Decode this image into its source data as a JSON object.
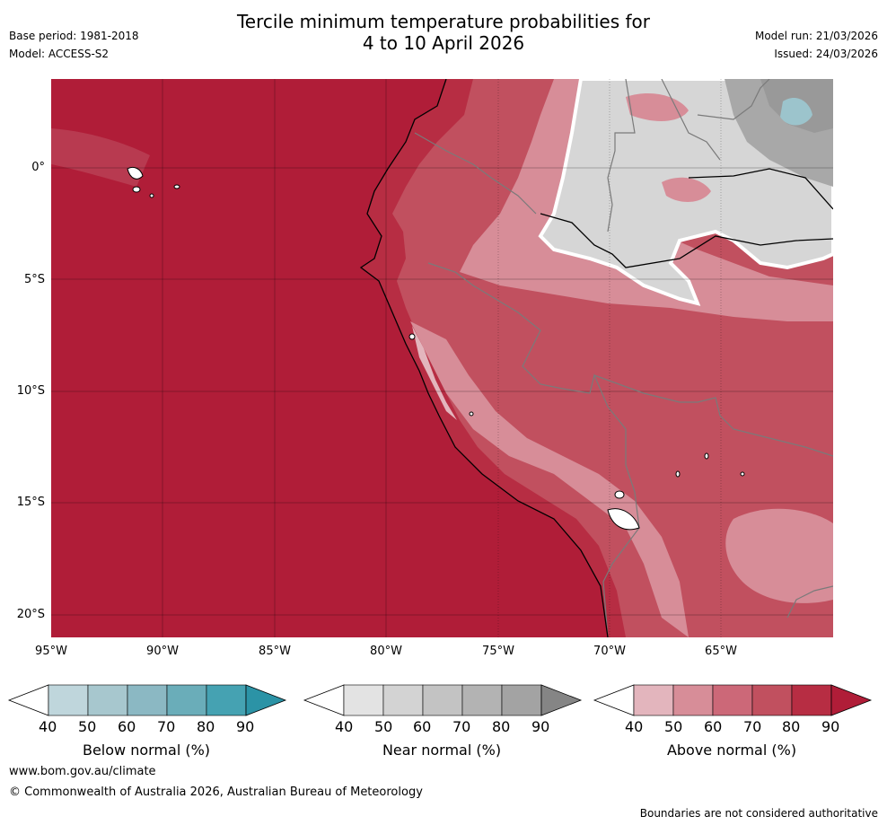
{
  "header": {
    "title_line1": "Tercile minimum temperature probabilities for",
    "title_line2": "4 to 10 April 2026",
    "base_period": "Base period: 1981-2018",
    "model": "Model: ACCESS-S2",
    "model_run": "Model run: 21/03/2026",
    "issued": "Issued: 24/03/2026"
  },
  "map": {
    "lat_labels": [
      "0°",
      "5°S",
      "10°S",
      "15°S",
      "20°S"
    ],
    "lon_labels": [
      "95°W",
      "90°W",
      "85°W",
      "80°W",
      "75°W",
      "70°W",
      "65°W"
    ],
    "lat_values": [
      0,
      -5,
      -10,
      -15,
      -20
    ],
    "lon_values": [
      -95,
      -90,
      -85,
      -80,
      -75,
      -70,
      -65
    ]
  },
  "colorbars": [
    {
      "label": "Below normal (%)",
      "ticks": [
        "40",
        "50",
        "60",
        "70",
        "80",
        "90"
      ],
      "colors": [
        "#bfd6dc",
        "#a7c7ce",
        "#8bb8c3",
        "#6aadb9",
        "#45a2b2",
        "#2b93a6"
      ]
    },
    {
      "label": "Near normal (%)",
      "ticks": [
        "40",
        "50",
        "60",
        "70",
        "80",
        "90"
      ],
      "colors": [
        "#e3e3e3",
        "#d3d3d3",
        "#c3c3c3",
        "#b3b3b3",
        "#a3a3a3",
        "#858585"
      ]
    },
    {
      "label": "Above normal (%)",
      "ticks": [
        "40",
        "50",
        "60",
        "70",
        "80",
        "90"
      ],
      "colors": [
        "#e3b5bd",
        "#d78d98",
        "#cc6878",
        "#c1505f",
        "#b72d43",
        "#b01d38"
      ]
    }
  ],
  "footer": {
    "website": "www.bom.gov.au/climate",
    "copyright": "© Commonwealth of Australia 2026, Australian Bureau of Meteorology",
    "disclaimer": "Boundaries are not considered authoritative"
  },
  "colors": {
    "ocean_fill": "#b01d38",
    "land_mid": "#c1505f",
    "land_light": "#d78d98",
    "near_light": "#d6d6d6",
    "near_dark": "#a8a8a8",
    "below_patch": "#9cc4cc"
  }
}
